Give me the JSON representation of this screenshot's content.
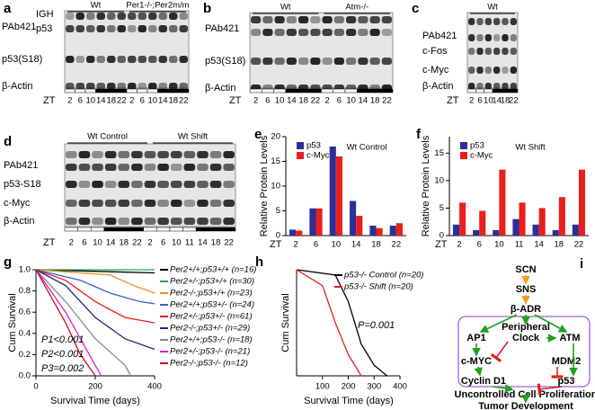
{
  "blots": [
    {
      "panel": "a",
      "headers": [
        "Wt",
        "Per1-/-;Per2m/m"
      ],
      "rows": [
        "PAb421",
        "IGH",
        "p53",
        "p53(S18)",
        "β-Actin"
      ],
      "zt_label": "ZT",
      "zt": [
        2,
        6,
        10,
        14,
        18,
        22,
        2,
        6,
        10,
        14,
        18,
        22
      ]
    },
    {
      "panel": "b",
      "headers": [
        "Wt",
        "Atm-/-"
      ],
      "rows": [
        "PAb421",
        "p53(S18)",
        "β-Actin"
      ],
      "zt_label": "ZT",
      "zt": [
        2,
        6,
        10,
        14,
        18,
        22,
        2,
        6,
        10,
        14,
        18,
        22
      ]
    },
    {
      "panel": "c",
      "headers": [
        "Wt"
      ],
      "rows": [
        "PAb421",
        "c-Fos",
        "c-Myc",
        "β-Actin"
      ],
      "zt_label": "ZT",
      "zt": [
        2,
        6,
        10,
        14,
        18,
        22
      ]
    },
    {
      "panel": "d",
      "headers": [
        "Wt Control",
        "Wt Shift"
      ],
      "rows": [
        "PAb421",
        "p53-S18",
        "c-Myc",
        "β-Actin"
      ],
      "zt_label": "ZT",
      "zt": [
        2,
        6,
        10,
        14,
        18,
        22,
        2,
        6,
        10,
        11,
        14,
        18,
        22
      ]
    }
  ],
  "chart_data": [
    {
      "type": "bar",
      "panel": "e",
      "title": "Wt Control",
      "ylabel": "Relative Protein Levels",
      "xlabel": "ZT",
      "categories": [
        "2",
        "6",
        "10",
        "14",
        "18",
        "22"
      ],
      "series": [
        {
          "name": "p53",
          "color": "#2e2e9a",
          "values": [
            1.2,
            5.5,
            18,
            7,
            2,
            2
          ]
        },
        {
          "name": "c-Myc",
          "color": "#e8201c",
          "values": [
            1,
            5.5,
            16,
            4,
            1.5,
            2.5
          ]
        }
      ],
      "ylim": [
        0,
        20
      ],
      "yticks": [
        0,
        5,
        10,
        15,
        20
      ]
    },
    {
      "type": "bar",
      "panel": "f",
      "title": "Wt Shift",
      "ylabel": "Relative Protein Levels",
      "xlabel": "ZT",
      "categories": [
        "2",
        "6",
        "10",
        "11",
        "14",
        "18",
        "22"
      ],
      "series": [
        {
          "name": "p53",
          "color": "#2e2e9a",
          "values": [
            2,
            1,
            1,
            3,
            2,
            1,
            2
          ]
        },
        {
          "name": "c-Myc",
          "color": "#e8201c",
          "values": [
            6,
            4.5,
            12,
            6,
            5,
            7,
            12
          ]
        }
      ],
      "ylim": [
        0,
        18
      ],
      "yticks": [
        0,
        5,
        10,
        15
      ]
    },
    {
      "type": "line",
      "panel": "g",
      "ylabel": "Cum Survival",
      "xlabel": "Survival Time (days)",
      "annotations": [
        "P1<0.001",
        "P2<0.001",
        "P3=0.002"
      ],
      "series": [
        {
          "name": "Per2+/+;p53+/+ (n=16)",
          "color": "#000000",
          "x": [
            0,
            400
          ],
          "values": [
            1,
            0.97
          ]
        },
        {
          "name": "Per2+/-;p53+/+ (n=30)",
          "color": "#2aa05a",
          "x": [
            0,
            400
          ],
          "values": [
            1,
            1
          ]
        },
        {
          "name": "Per2-/-;p53+/+ (n=23)",
          "color": "#f08a24",
          "x": [
            0,
            250,
            330,
            400
          ],
          "values": [
            1,
            0.95,
            0.85,
            0.78
          ]
        },
        {
          "name": "Per2+/+;p53+/- (n=24)",
          "color": "#3a5fd0",
          "x": [
            0,
            150,
            250,
            350,
            400
          ],
          "values": [
            1,
            0.9,
            0.78,
            0.7,
            0.68
          ]
        },
        {
          "name": "Per2+/-;p53+/- (n=61)",
          "color": "#e8201c",
          "x": [
            0,
            100,
            200,
            300,
            400
          ],
          "values": [
            1,
            0.9,
            0.7,
            0.55,
            0.5
          ]
        },
        {
          "name": "Per2-/-;p53+/- (n=29)",
          "color": "#1f2a80",
          "x": [
            0,
            100,
            200,
            300,
            400
          ],
          "values": [
            1,
            0.85,
            0.55,
            0.35,
            0.25
          ]
        },
        {
          "name": "Per2+/+;p53-/- (n=18)",
          "color": "#8a8a8a",
          "x": [
            0,
            100,
            200,
            300,
            320
          ],
          "values": [
            1,
            0.7,
            0.35,
            0.1,
            0
          ]
        },
        {
          "name": "Per2+/-;p53-/- (n=21)",
          "color": "#e020c0",
          "x": [
            0,
            100,
            150,
            200,
            220
          ],
          "values": [
            1,
            0.6,
            0.35,
            0.1,
            0
          ]
        },
        {
          "name": "Per2-/-;p53-/- (n=12)",
          "color": "#c0102a",
          "x": [
            0,
            100,
            150,
            200
          ],
          "values": [
            1,
            0.5,
            0.2,
            0
          ]
        }
      ],
      "xlim": [
        0,
        400
      ],
      "xticks": [
        0,
        200,
        400
      ],
      "ylim": [
        0,
        1
      ],
      "yticks": [
        {
          "value": 0,
          "label": "0.0"
        },
        {
          "value": 0.2,
          "label": "0.2"
        },
        {
          "value": 0.4,
          "label": "0.4"
        },
        {
          "value": 0.6,
          "label": "0.6"
        },
        {
          "value": 0.8,
          "label": "0.8"
        },
        {
          "value": 1,
          "label": "1.0"
        }
      ]
    },
    {
      "type": "line",
      "panel": "h",
      "ylabel": "Cum Survival",
      "xlabel": "Survival Time (days)",
      "annotations": [
        "P=0.001"
      ],
      "series": [
        {
          "name": "p53-/- Control (n=20)",
          "color": "#000000",
          "x": [
            0,
            150,
            200,
            250,
            300,
            350
          ],
          "values": [
            1,
            0.95,
            0.7,
            0.3,
            0.1,
            0
          ]
        },
        {
          "name": "p53-/- Shift (n=20)",
          "color": "#e8201c",
          "x": [
            0,
            100,
            150,
            200,
            250
          ],
          "values": [
            1,
            0.85,
            0.5,
            0.2,
            0
          ]
        }
      ],
      "xlim": [
        0,
        400
      ],
      "xticks": [
        100,
        200,
        300,
        400
      ],
      "ylim": [
        0,
        1
      ]
    }
  ],
  "diagram": {
    "panel": "i",
    "nodes": [
      {
        "label": "SCN"
      },
      {
        "label": "SNS"
      },
      {
        "label": "β-ADR"
      },
      {
        "label": "AP1"
      },
      {
        "lines": [
          "Peripheral",
          "Clock"
        ]
      },
      {
        "label": "ATM"
      },
      {
        "label": "c-MYC"
      },
      {
        "label": "MDM2"
      },
      {
        "label": "Cyclin D1"
      },
      {
        "label": "p53"
      },
      {
        "label": "Uncontrolled Cell Proliferation"
      },
      {
        "label": "Tumor Development"
      }
    ]
  }
}
